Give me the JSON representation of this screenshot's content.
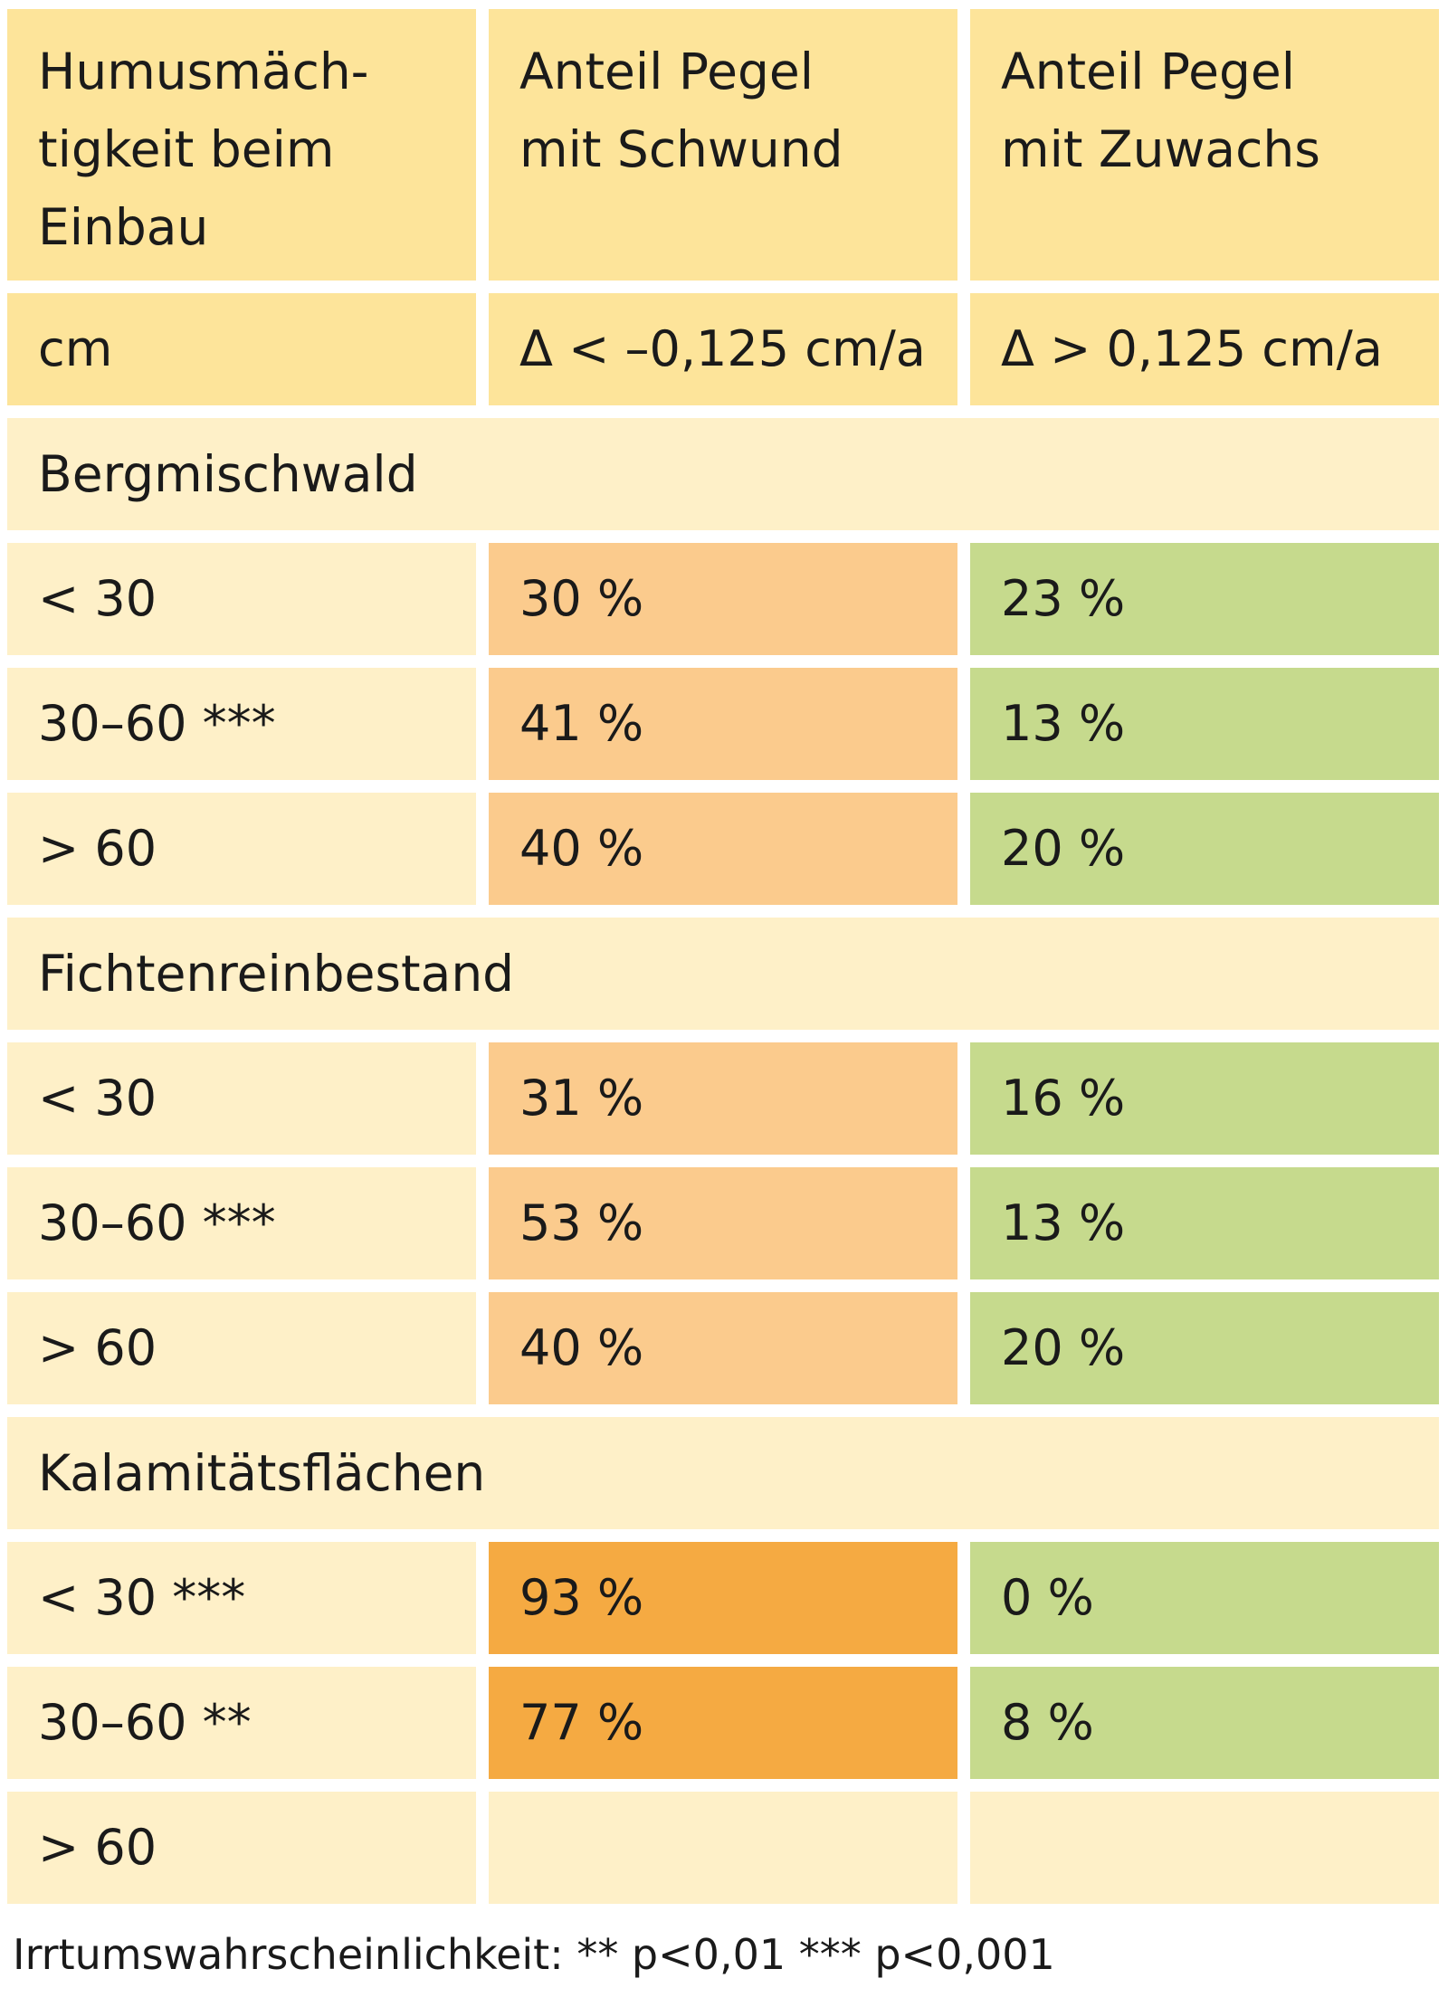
{
  "header": {
    "col1": "Humusmäch-\ntigkeit beim\nEinbau",
    "col2": "Anteil Pegel\nmit Schwund",
    "col3": "Anteil Pegel\nmit Zuwachs"
  },
  "units": {
    "col1": "cm",
    "col2": "Δ < –0,125 cm/a",
    "col3": "Δ > 0,125 cm/a"
  },
  "groups": [
    {
      "name": "Bergmischwald",
      "rows": [
        {
          "label": "< 30",
          "schwund": "30 %",
          "zuwachs": "23 %"
        },
        {
          "label": "30–60 ***",
          "schwund": "41 %",
          "zuwachs": "13 %"
        },
        {
          "label": "> 60",
          "schwund": "40 %",
          "zuwachs": "20 %"
        }
      ]
    },
    {
      "name": "Fichtenreinbestand",
      "rows": [
        {
          "label": "< 30",
          "schwund": "31 %",
          "zuwachs": "16 %"
        },
        {
          "label": "30–60 ***",
          "schwund": "53 %",
          "zuwachs": "13 %"
        },
        {
          "label": "> 60",
          "schwund": "40 %",
          "zuwachs": "20 %"
        }
      ]
    },
    {
      "name": "Kalamitätsflächen",
      "rows": [
        {
          "label": "< 30 ***",
          "schwund": "93 %",
          "zuwachs": "0 %"
        },
        {
          "label": "30–60 **",
          "schwund": "77 %",
          "zuwachs": "8 %"
        },
        {
          "label": "> 60",
          "schwund": "",
          "zuwachs": ""
        }
      ]
    }
  ],
  "footnote": "Irrtumswahrscheinlichkeit: ** p<0,01   *** p<0,001",
  "colors": {
    "header": "#fde49a",
    "light": "#fef0c8",
    "schwund": "#fbcb8d",
    "schwund_high": "#f5aa42",
    "zuwachs": "#c6da8d"
  }
}
